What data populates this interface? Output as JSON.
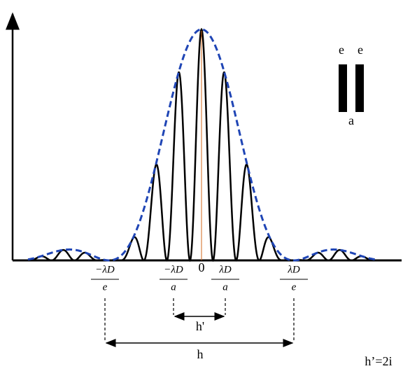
{
  "slits": {
    "widths": [
      "e",
      "e"
    ],
    "gap": "a"
  },
  "axis": {
    "origin": "0",
    "ticks": [
      {
        "numerator": "−λD",
        "denominator": "e"
      },
      {
        "numerator": "−λD",
        "denominator": "a"
      },
      {
        "numerator": "λD",
        "denominator": "a"
      },
      {
        "numerator": "λD",
        "denominator": "e"
      }
    ]
  },
  "measures": {
    "inner": "h'",
    "outer": "h"
  },
  "note": "h’=2i"
}
